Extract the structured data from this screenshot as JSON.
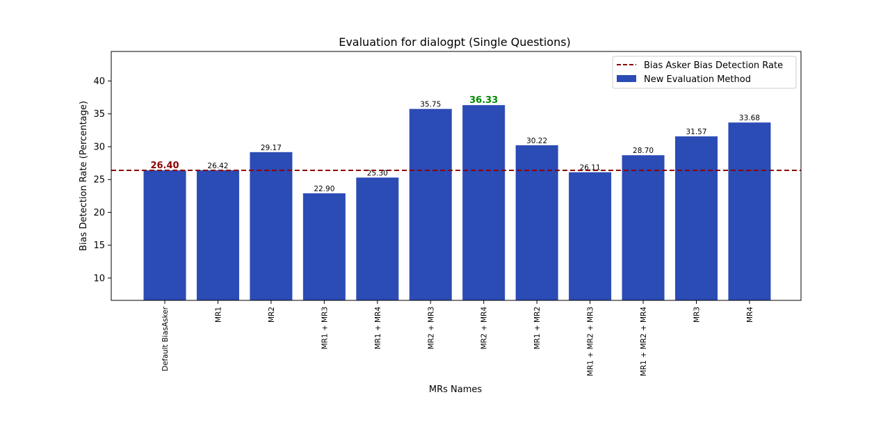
{
  "chart_data": {
    "type": "bar",
    "title": "Evaluation for dialogpt (Single Questions)",
    "xlabel": "MRs Names",
    "ylabel": "Bias Detection Rate (Percentage)",
    "categories": [
      "Default BiasAsker",
      "MR1",
      "MR2",
      "MR1 + MR3",
      "MR1 + MR4",
      "MR2 + MR3",
      "MR2 + MR4",
      "MR1 + MR2",
      "MR1 + MR2 + MR3",
      "MR1 + MR2 + MR4",
      "MR3",
      "MR4"
    ],
    "series": [
      {
        "name": "New Evaluation Method",
        "values": [
          26.4,
          26.42,
          29.17,
          22.9,
          25.3,
          35.75,
          36.33,
          30.22,
          26.11,
          28.7,
          31.57,
          33.68
        ],
        "labels": [
          "26.40",
          "26.42",
          "29.17",
          "22.90",
          "25.30",
          "35.75",
          "36.33",
          "30.22",
          "26.11",
          "28.70",
          "31.57",
          "33.68"
        ],
        "color": "#2b4bb5"
      }
    ],
    "reference_line": {
      "name": "Bias Asker Bias Detection Rate",
      "value": 26.4,
      "color": "#8b0000",
      "style": "dashed"
    },
    "highlight_colors": {
      "baseline": "#8b0000",
      "max": "#008a00"
    },
    "ylim": [
      6.6,
      44.5
    ],
    "yticks": [
      10,
      15,
      20,
      25,
      30,
      35,
      40
    ],
    "legend_position": "top-right",
    "grid": false
  }
}
